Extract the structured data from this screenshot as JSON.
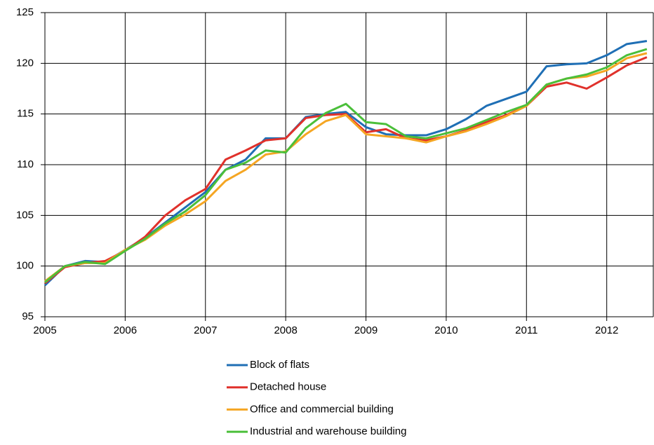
{
  "chart_data": {
    "type": "line",
    "x": [
      2005,
      2005.25,
      2005.5,
      2005.75,
      2006,
      2006.25,
      2006.5,
      2006.75,
      2007,
      2007.25,
      2007.5,
      2007.75,
      2008,
      2008.25,
      2008.5,
      2008.75,
      2009,
      2009.25,
      2009.5,
      2009.75,
      2010,
      2010.25,
      2010.5,
      2010.75,
      2011,
      2011.25,
      2011.5,
      2011.75,
      2012,
      2012.25,
      2012.5
    ],
    "series": [
      {
        "name": "Block of flats",
        "color": "#1f6fb5",
        "values": [
          98.1,
          100.0,
          100.5,
          100.4,
          101.6,
          102.8,
          104.3,
          105.8,
          107.3,
          109.5,
          110.5,
          112.6,
          112.6,
          114.7,
          115.0,
          115.2,
          113.7,
          113.0,
          112.9,
          112.9,
          113.5,
          114.5,
          115.8,
          116.5,
          117.2,
          119.7,
          119.9,
          120.0,
          120.8,
          121.9,
          122.2
        ]
      },
      {
        "name": "Detached house",
        "color": "#e0312b",
        "values": [
          98.3,
          99.9,
          100.3,
          100.5,
          101.5,
          102.9,
          105.0,
          106.5,
          107.6,
          110.5,
          111.4,
          112.4,
          112.6,
          114.6,
          114.9,
          115.0,
          113.2,
          113.5,
          112.6,
          112.4,
          112.8,
          113.4,
          114.2,
          114.9,
          115.8,
          117.7,
          118.1,
          117.5,
          118.6,
          119.8,
          120.6
        ]
      },
      {
        "name": "Office and commercial building",
        "color": "#f5a623",
        "values": [
          98.5,
          100.0,
          100.3,
          100.3,
          101.6,
          102.6,
          104.0,
          105.1,
          106.4,
          108.4,
          109.5,
          111.0,
          111.3,
          113.0,
          114.3,
          114.9,
          113.0,
          112.8,
          112.6,
          112.2,
          112.8,
          113.3,
          114.0,
          114.8,
          115.8,
          117.9,
          118.5,
          118.7,
          119.3,
          120.5,
          121.0
        ]
      },
      {
        "name": "Industrial and warehouse building",
        "color": "#4bbf3a",
        "values": [
          98.4,
          100.0,
          100.4,
          100.2,
          101.5,
          102.7,
          104.2,
          105.4,
          107.0,
          109.5,
          110.2,
          111.4,
          111.2,
          113.6,
          115.1,
          116.0,
          114.2,
          114.0,
          112.8,
          112.6,
          113.1,
          113.6,
          114.4,
          115.2,
          115.9,
          117.9,
          118.5,
          118.9,
          119.6,
          120.8,
          121.4
        ]
      }
    ],
    "xlim": [
      2005,
      2012.58
    ],
    "xticks": [
      2005,
      2006,
      2007,
      2008,
      2009,
      2010,
      2011,
      2012
    ],
    "ylim": [
      95,
      125
    ],
    "yticks": [
      95,
      100,
      105,
      110,
      115,
      120,
      125
    ],
    "grid": true,
    "legend": "bottom"
  }
}
